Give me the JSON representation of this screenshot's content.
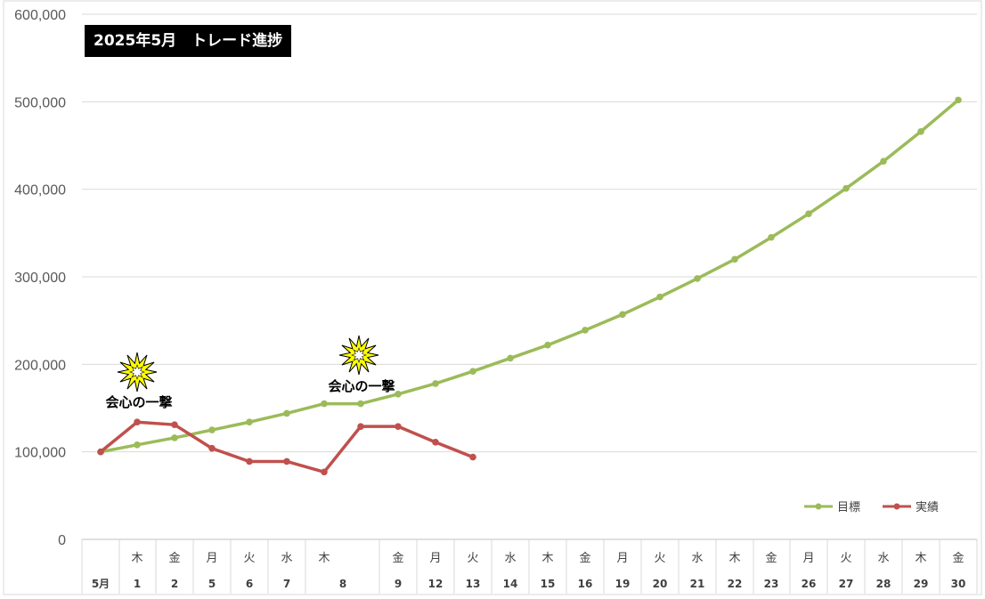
{
  "chart_data": {
    "type": "line",
    "title": "2025年5月　トレード進捗",
    "xlabel": "",
    "ylabel": "",
    "ylim": [
      0,
      600000
    ],
    "yticks": [
      "0",
      "100,000",
      "200,000",
      "300,000",
      "400,000",
      "500,000",
      "600,000"
    ],
    "categories": [
      {
        "weekday": "",
        "day": "5月"
      },
      {
        "weekday": "木",
        "day": "1"
      },
      {
        "weekday": "金",
        "day": "2"
      },
      {
        "weekday": "月",
        "day": "5"
      },
      {
        "weekday": "火",
        "day": "6"
      },
      {
        "weekday": "水",
        "day": "7"
      },
      {
        "weekday": "木",
        "day": "8"
      },
      {
        "weekday": "",
        "day": ""
      },
      {
        "weekday": "金",
        "day": "9"
      },
      {
        "weekday": "月",
        "day": "12"
      },
      {
        "weekday": "火",
        "day": "13"
      },
      {
        "weekday": "水",
        "day": "14"
      },
      {
        "weekday": "木",
        "day": "15"
      },
      {
        "weekday": "金",
        "day": "16"
      },
      {
        "weekday": "月",
        "day": "19"
      },
      {
        "weekday": "火",
        "day": "20"
      },
      {
        "weekday": "水",
        "day": "21"
      },
      {
        "weekday": "木",
        "day": "22"
      },
      {
        "weekday": "金",
        "day": "23"
      },
      {
        "weekday": "月",
        "day": "26"
      },
      {
        "weekday": "火",
        "day": "27"
      },
      {
        "weekday": "水",
        "day": "28"
      },
      {
        "weekday": "木",
        "day": "29"
      },
      {
        "weekday": "金",
        "day": "30"
      }
    ],
    "series": [
      {
        "name": "目標",
        "color": "#9bbb59",
        "values": [
          100000,
          108000,
          116000,
          125000,
          134000,
          144000,
          155000,
          155000,
          166000,
          178000,
          192000,
          207000,
          222000,
          239000,
          257000,
          277000,
          298000,
          320000,
          345000,
          372000,
          401000,
          432000,
          466000,
          502000
        ]
      },
      {
        "name": "実績",
        "color": "#c0504d",
        "values": [
          100000,
          134000,
          131000,
          104000,
          89000,
          89000,
          77000,
          129000,
          129000,
          111000,
          94000,
          null,
          null,
          null,
          null,
          null,
          null,
          null,
          null,
          null,
          null,
          null,
          null,
          null
        ]
      }
    ],
    "annotations": [
      {
        "text": "会心の一撃",
        "index": 1
      },
      {
        "text": "会心の一撃",
        "index": 7
      }
    ],
    "grid": true,
    "legend": "bottom-right"
  }
}
